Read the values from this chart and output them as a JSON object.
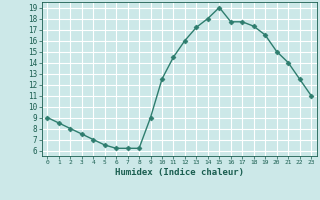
{
  "x": [
    0,
    1,
    2,
    3,
    4,
    5,
    6,
    7,
    8,
    9,
    10,
    11,
    12,
    13,
    14,
    15,
    16,
    17,
    18,
    19,
    20,
    21,
    22,
    23
  ],
  "y": [
    9.0,
    8.5,
    8.0,
    7.5,
    7.0,
    6.5,
    6.2,
    6.2,
    6.2,
    9.0,
    12.5,
    14.5,
    16.0,
    17.2,
    18.0,
    19.0,
    17.7,
    17.7,
    17.3,
    16.5,
    15.0,
    14.0,
    12.5,
    11.0
  ],
  "xlabel": "Humidex (Indice chaleur)",
  "line_color": "#2e7d6e",
  "marker": "D",
  "marker_size": 2.5,
  "bg_color": "#cce8e8",
  "grid_color": "#ffffff",
  "tick_color": "#1a5e50",
  "xlim": [
    -0.5,
    23.5
  ],
  "ylim": [
    5.5,
    19.5
  ],
  "yticks": [
    6,
    7,
    8,
    9,
    10,
    11,
    12,
    13,
    14,
    15,
    16,
    17,
    18,
    19
  ],
  "xticks": [
    0,
    1,
    2,
    3,
    4,
    5,
    6,
    7,
    8,
    9,
    10,
    11,
    12,
    13,
    14,
    15,
    16,
    17,
    18,
    19,
    20,
    21,
    22,
    23
  ]
}
